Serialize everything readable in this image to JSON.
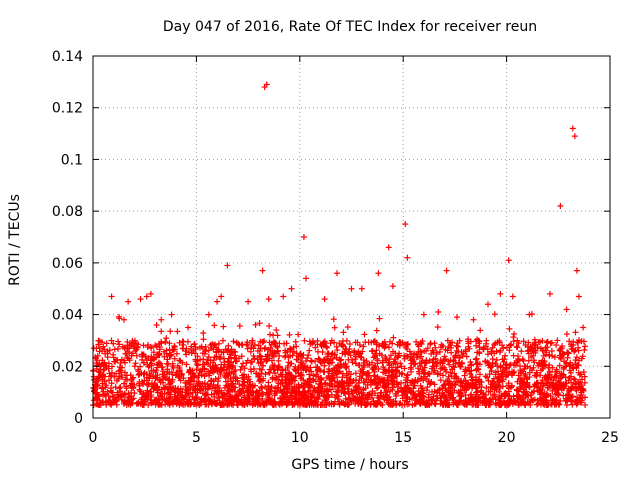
{
  "chart_data": {
    "type": "scatter",
    "title": "Day 047 of 2016, Rate Of TEC Index for receiver reun",
    "xlabel": "GPS time / hours",
    "ylabel": "ROTI / TECUs",
    "xlim": [
      0,
      25
    ],
    "ylim": [
      0,
      0.14
    ],
    "xticks": [
      0,
      5,
      10,
      15,
      20,
      25
    ],
    "xtick_labels": [
      "0",
      "5",
      "10",
      "15",
      "20",
      "25"
    ],
    "yticks": [
      0,
      0.02,
      0.04,
      0.06,
      0.08,
      0.1,
      0.12,
      0.14
    ],
    "ytick_labels": [
      "0",
      "0.02",
      "0.04",
      "0.06",
      "0.08",
      "0.1",
      "0.12",
      "0.14"
    ],
    "grid": true,
    "marker": "plus",
    "color": "#ff0000",
    "x_coverage_hours": [
      0,
      23.8
    ],
    "typical_range": [
      0.005,
      0.03
    ],
    "series": [
      {
        "name": "ROTI",
        "points": [
          [
            0.3,
            0.021
          ],
          [
            0.9,
            0.047
          ],
          [
            1.5,
            0.038
          ],
          [
            1.7,
            0.045
          ],
          [
            2.3,
            0.046
          ],
          [
            2.6,
            0.047
          ],
          [
            2.8,
            0.048
          ],
          [
            3.3,
            0.038
          ],
          [
            3.8,
            0.04
          ],
          [
            4.6,
            0.035
          ],
          [
            5.6,
            0.04
          ],
          [
            6.0,
            0.045
          ],
          [
            6.2,
            0.047
          ],
          [
            6.5,
            0.059
          ],
          [
            7.5,
            0.045
          ],
          [
            8.2,
            0.057
          ],
          [
            8.3,
            0.128
          ],
          [
            8.4,
            0.129
          ],
          [
            8.5,
            0.046
          ],
          [
            9.2,
            0.047
          ],
          [
            9.6,
            0.05
          ],
          [
            10.2,
            0.07
          ],
          [
            10.3,
            0.054
          ],
          [
            11.2,
            0.046
          ],
          [
            11.8,
            0.056
          ],
          [
            12.5,
            0.05
          ],
          [
            13.0,
            0.05
          ],
          [
            13.8,
            0.056
          ],
          [
            14.3,
            0.066
          ],
          [
            14.5,
            0.051
          ],
          [
            15.1,
            0.075
          ],
          [
            15.2,
            0.062
          ],
          [
            16.0,
            0.04
          ],
          [
            16.7,
            0.041
          ],
          [
            17.1,
            0.057
          ],
          [
            17.6,
            0.039
          ],
          [
            18.4,
            0.038
          ],
          [
            19.1,
            0.044
          ],
          [
            19.7,
            0.048
          ],
          [
            20.1,
            0.061
          ],
          [
            20.3,
            0.047
          ],
          [
            21.1,
            0.04
          ],
          [
            22.1,
            0.048
          ],
          [
            22.6,
            0.082
          ],
          [
            22.9,
            0.042
          ],
          [
            23.2,
            0.112
          ],
          [
            23.3,
            0.109
          ],
          [
            23.4,
            0.057
          ],
          [
            23.5,
            0.047
          ],
          [
            23.7,
            0.035
          ]
        ]
      }
    ]
  }
}
